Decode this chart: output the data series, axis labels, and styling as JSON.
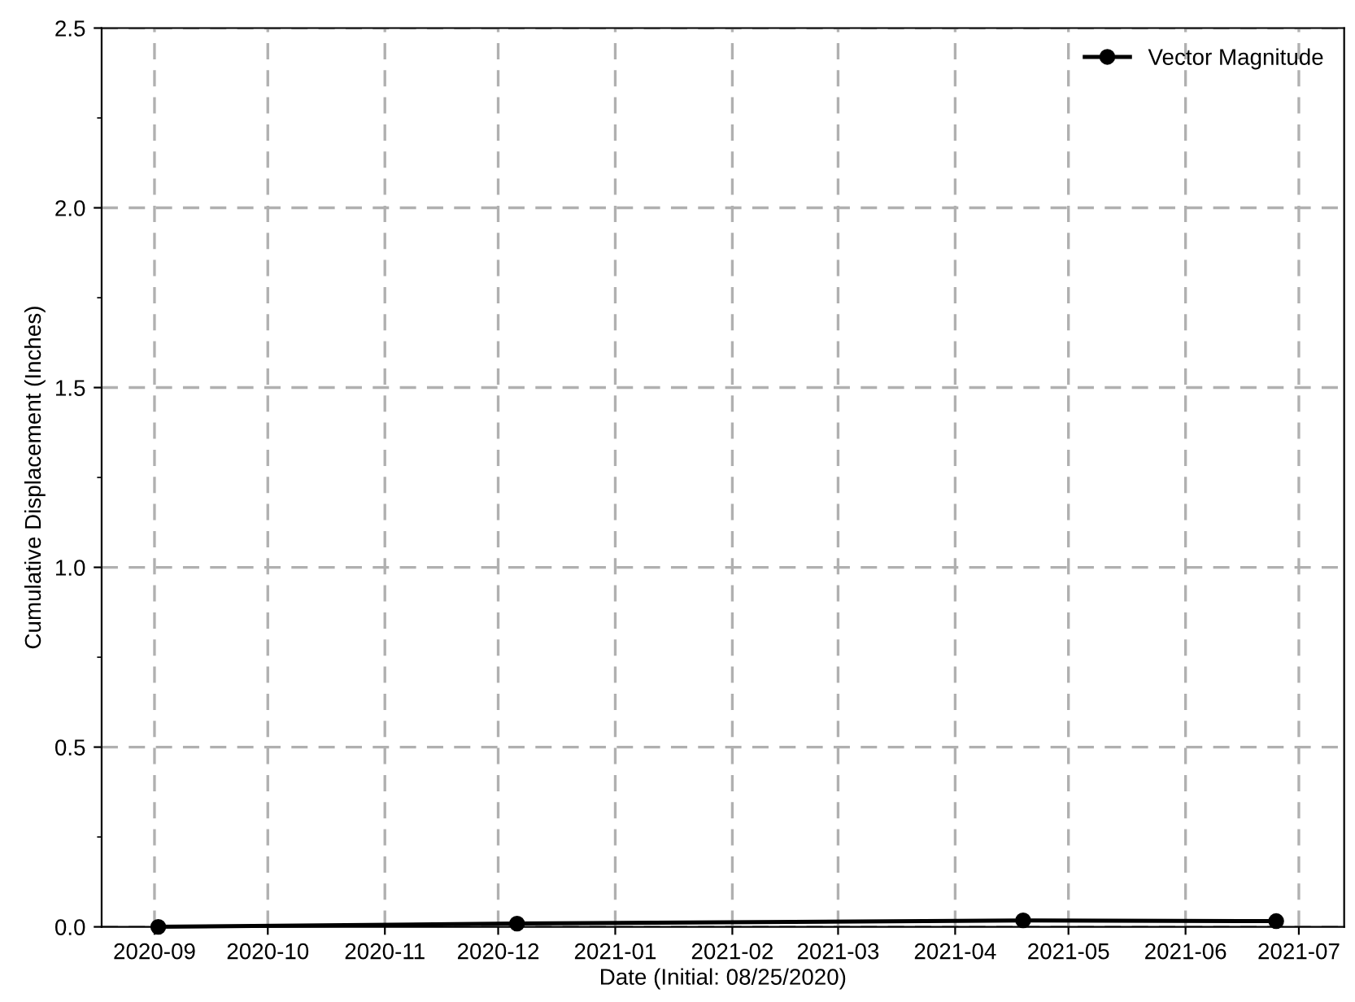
{
  "chart_data": {
    "type": "line",
    "xlabel": "Date (Initial: 08/25/2020)",
    "ylabel": "Cumulative Displacement (Inches)",
    "x": [
      "2020-09-02",
      "2020-12-06",
      "2021-04-19",
      "2021-06-25"
    ],
    "series": [
      {
        "name": "Vector Magnitude",
        "color": "#000000",
        "values": [
          0.0,
          0.009,
          0.018,
          0.016
        ]
      }
    ],
    "xlim": [
      "2020-08-18",
      "2021-07-13"
    ],
    "xticks": [
      {
        "value": "2020-09-01",
        "label": "2020-09"
      },
      {
        "value": "2020-10-01",
        "label": "2020-10"
      },
      {
        "value": "2020-11-01",
        "label": "2020-11"
      },
      {
        "value": "2020-12-01",
        "label": "2020-12"
      },
      {
        "value": "2021-01-01",
        "label": "2021-01"
      },
      {
        "value": "2021-02-01",
        "label": "2021-02"
      },
      {
        "value": "2021-03-01",
        "label": "2021-03"
      },
      {
        "value": "2021-04-01",
        "label": "2021-04"
      },
      {
        "value": "2021-05-01",
        "label": "2021-05"
      },
      {
        "value": "2021-06-01",
        "label": "2021-06"
      },
      {
        "value": "2021-07-01",
        "label": "2021-07"
      }
    ],
    "ylim": [
      0,
      2.5
    ],
    "yticks": [
      {
        "value": 0,
        "label": "0.0"
      },
      {
        "value": 0.5,
        "label": "0.5"
      },
      {
        "value": 1,
        "label": "1.0"
      },
      {
        "value": 1.5,
        "label": "1.5"
      },
      {
        "value": 2,
        "label": "2.0"
      },
      {
        "value": 2.5,
        "label": "2.5"
      }
    ],
    "grid": true,
    "legend": "top right",
    "marker": "circle",
    "line_style": "solid"
  }
}
